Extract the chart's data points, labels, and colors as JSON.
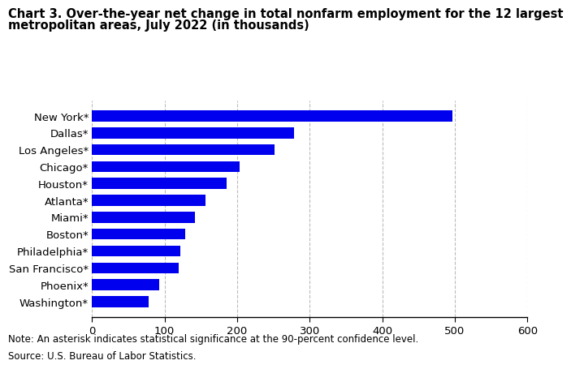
{
  "title_line1": "Chart 3. Over-the-year net change in total nonfarm employment for the 12 largest",
  "title_line2": "metropolitan areas, July 2022 (in thousands)",
  "categories": [
    "Washington*",
    "Phoenix*",
    "San Francisco*",
    "Philadelphia*",
    "Boston*",
    "Miami*",
    "Atlanta*",
    "Houston*",
    "Chicago*",
    "Los Angeles*",
    "Dallas*",
    "New York*"
  ],
  "values": [
    78,
    93,
    120,
    122,
    128,
    142,
    156,
    186,
    203,
    252,
    278,
    497
  ],
  "bar_color": "#0000EE",
  "xlim": [
    0,
    600
  ],
  "xticks": [
    0,
    100,
    200,
    300,
    400,
    500,
    600
  ],
  "grid_color": "#bbbbbb",
  "note_line1": "Note: An asterisk indicates statistical significance at the 90-percent confidence level.",
  "note_line2": "Source: U.S. Bureau of Labor Statistics.",
  "title_fontsize": 10.5,
  "tick_fontsize": 9.5,
  "note_fontsize": 8.5,
  "bar_height": 0.65
}
